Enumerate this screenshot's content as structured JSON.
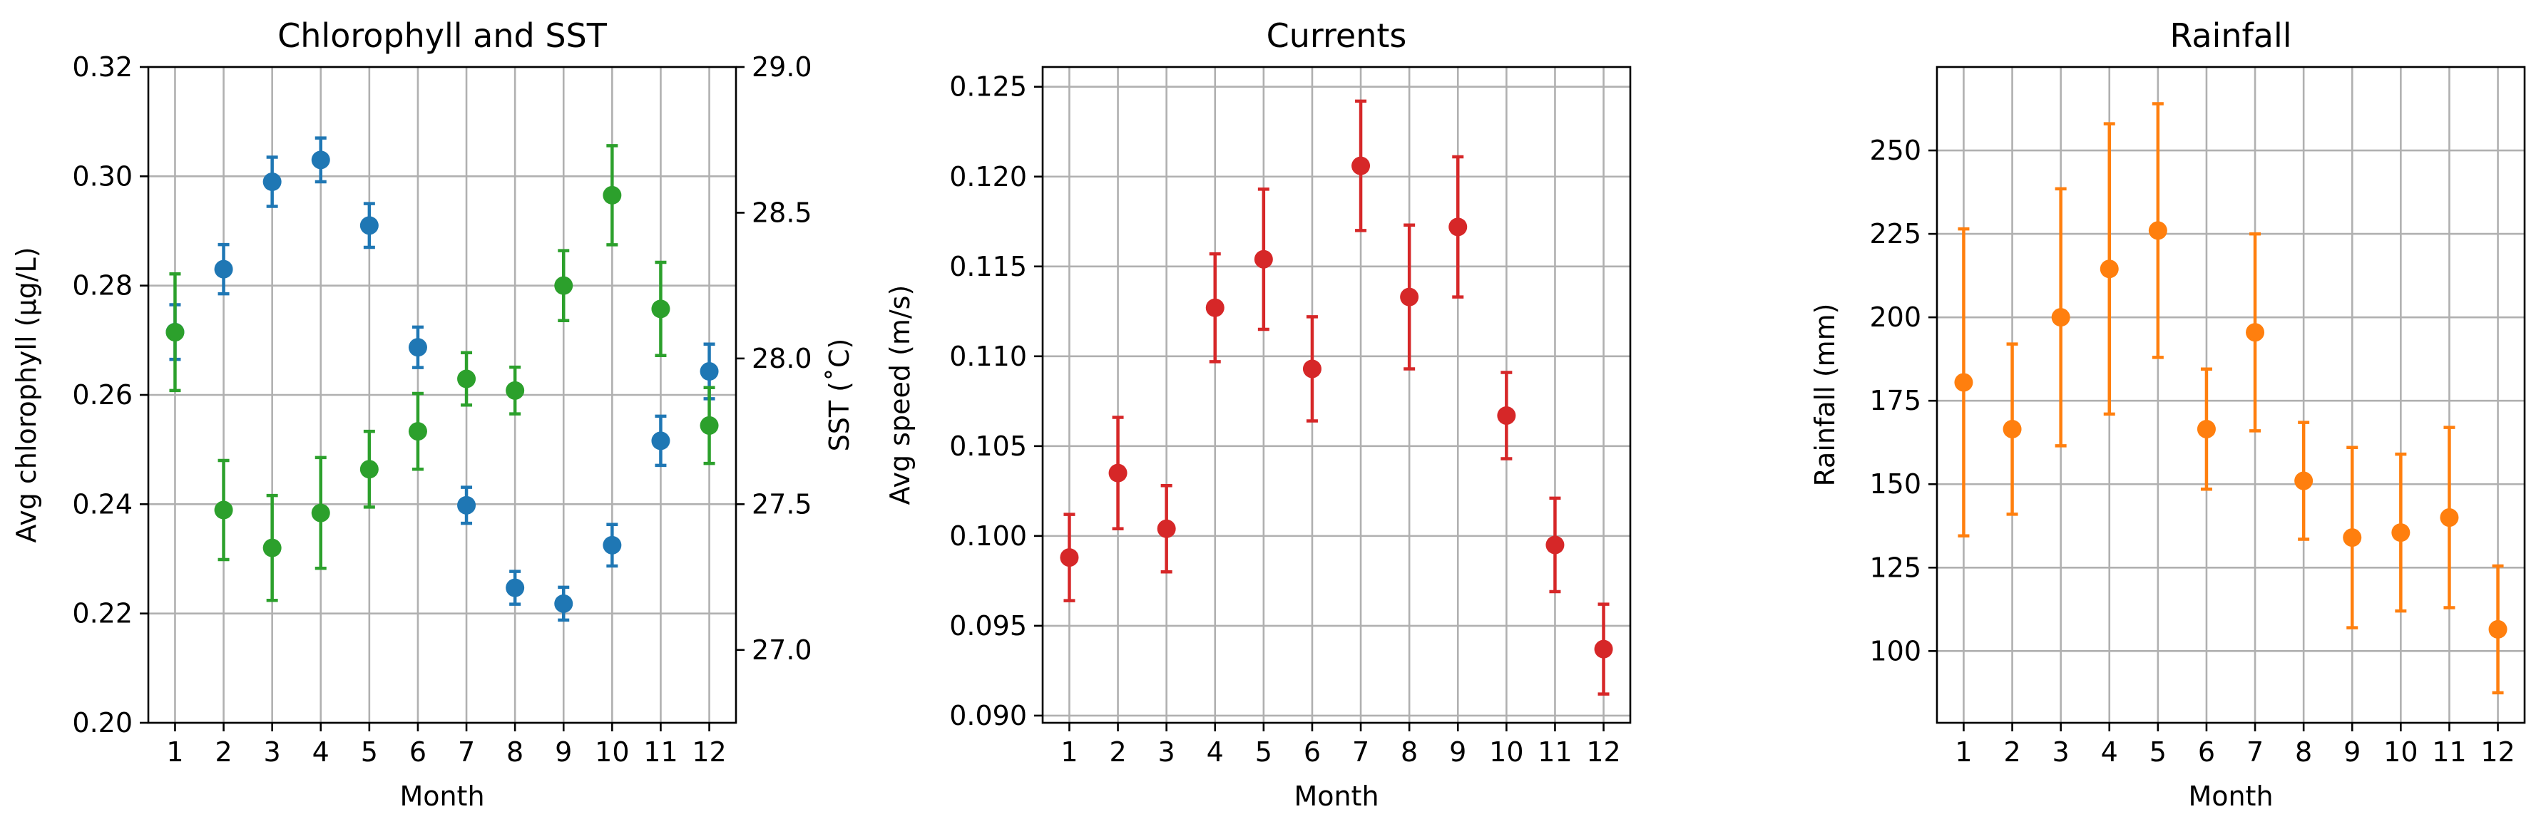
{
  "chart_data": [
    {
      "type": "scatter",
      "title": "Chlorophyll and SST",
      "xlabel": "Month",
      "ylabel": "Avg chlorophyll (μg/L)",
      "y2label": "SST (˚C)",
      "x": [
        1,
        2,
        3,
        4,
        5,
        6,
        7,
        8,
        9,
        10,
        11,
        12
      ],
      "xlim": [
        0.45,
        12.55
      ],
      "ylim": [
        0.2,
        0.32
      ],
      "y_ticks": [
        "0.20",
        "0.22",
        "0.24",
        "0.26",
        "0.28",
        "0.30",
        "0.32"
      ],
      "y2lim": [
        26.75,
        29.0
      ],
      "y2_ticks": [
        "27.0",
        "27.5",
        "28.0",
        "28.5",
        "29.0"
      ],
      "grid": true,
      "series": [
        {
          "axis": "left",
          "color": "#1f77b4",
          "values": [
            0.2715,
            0.283,
            0.299,
            0.303,
            0.291,
            0.2687,
            0.2398,
            0.2247,
            0.2218,
            0.2325,
            0.2516,
            0.2643
          ],
          "err": [
            0.005,
            0.0045,
            0.0045,
            0.004,
            0.004,
            0.0037,
            0.0033,
            0.003,
            0.003,
            0.0038,
            0.0045,
            0.005
          ]
        },
        {
          "axis": "right",
          "color": "#2ca02c",
          "values": [
            28.09,
            27.48,
            27.35,
            27.47,
            27.62,
            27.75,
            27.93,
            27.89,
            28.25,
            28.56,
            28.17,
            27.77
          ],
          "err": [
            0.2,
            0.17,
            0.18,
            0.19,
            0.13,
            0.13,
            0.09,
            0.08,
            0.12,
            0.17,
            0.16,
            0.13
          ]
        }
      ]
    },
    {
      "type": "scatter",
      "title": "Currents",
      "xlabel": "Month",
      "ylabel": "Avg speed (m/s)",
      "x": [
        1,
        2,
        3,
        4,
        5,
        6,
        7,
        8,
        9,
        10,
        11,
        12
      ],
      "xlim": [
        0.45,
        12.55
      ],
      "ylim": [
        0.0896,
        0.1261
      ],
      "y_ticks": [
        "0.090",
        "0.095",
        "0.100",
        "0.105",
        "0.110",
        "0.115",
        "0.120",
        "0.125"
      ],
      "grid": true,
      "series": [
        {
          "color": "#d62728",
          "values": [
            0.0988,
            0.1035,
            0.1004,
            0.1127,
            0.1154,
            0.1093,
            0.1206,
            0.1133,
            0.1172,
            0.1067,
            0.0995,
            0.0937
          ],
          "err": [
            0.0024,
            0.0031,
            0.0024,
            0.003,
            0.0039,
            0.0029,
            0.0036,
            0.004,
            0.0039,
            0.0024,
            0.0026,
            0.0025
          ]
        }
      ]
    },
    {
      "type": "scatter",
      "title": "Rainfall",
      "xlabel": "Month",
      "ylabel": "Rainfall (mm)",
      "x": [
        1,
        2,
        3,
        4,
        5,
        6,
        7,
        8,
        9,
        10,
        11,
        12
      ],
      "xlim": [
        0.45,
        12.55
      ],
      "ylim": [
        78.5,
        275.0
      ],
      "y_ticks": [
        "100",
        "125",
        "150",
        "175",
        "200",
        "225",
        "250"
      ],
      "grid": true,
      "series": [
        {
          "color": "#ff7f0e",
          "values": [
            180.5,
            166.5,
            200.0,
            214.5,
            226.0,
            166.5,
            195.5,
            151.0,
            134.0,
            135.5,
            140.0,
            106.5
          ],
          "err": [
            46.0,
            25.5,
            38.5,
            43.5,
            38.0,
            18.0,
            29.5,
            17.5,
            27.0,
            23.5,
            27.0,
            19.0
          ]
        }
      ]
    }
  ]
}
